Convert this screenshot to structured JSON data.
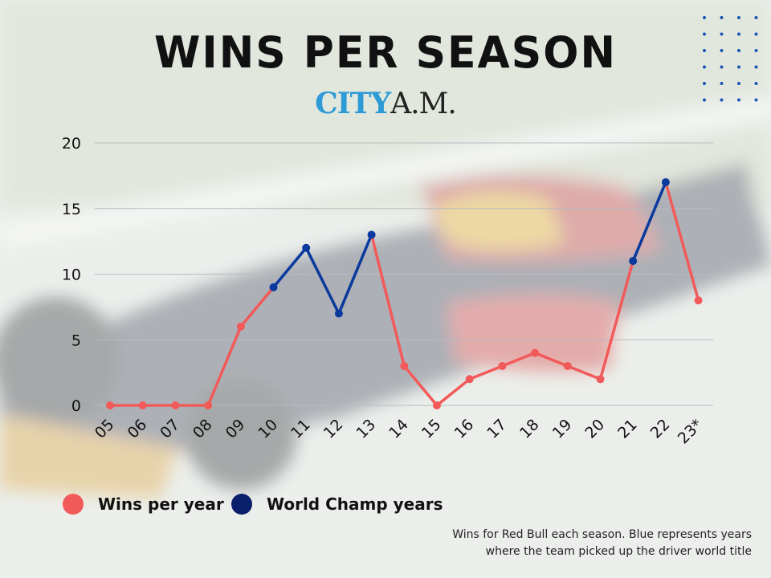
{
  "title": "WINS PER SEASON",
  "brand": {
    "city": "CITY",
    "am": "A.M."
  },
  "colors": {
    "wins": "#f25a5a",
    "champ": "#0a3a9e",
    "grid": "#b8bcc0",
    "dots": "#1a56b8"
  },
  "legend": [
    {
      "label": "Wins per year",
      "color": "#f25a5a",
      "icon": "red-dot-icon"
    },
    {
      "label": "World Champ years",
      "color": "#0a1f6b",
      "icon": "navy-dot-icon"
    }
  ],
  "caption": "Wins for Red Bull each season. Blue represents years where the team picked up the driver world title",
  "chart_data": {
    "type": "line",
    "title": "WINS PER SEASON",
    "xlabel": "",
    "ylabel": "",
    "categories": [
      "05",
      "06",
      "07",
      "08",
      "09",
      "10",
      "11",
      "12",
      "13",
      "14",
      "15",
      "16",
      "17",
      "18",
      "19",
      "20",
      "21",
      "22",
      "23*"
    ],
    "yticks": [
      "0",
      "5",
      "10",
      "15",
      "20"
    ],
    "ylim": [
      0,
      20
    ],
    "grid": true,
    "legend_position": "bottom-left",
    "series": [
      {
        "name": "Wins per year",
        "values": [
          0,
          0,
          0,
          0,
          6,
          9,
          12,
          7,
          13,
          3,
          0,
          2,
          3,
          4,
          3,
          2,
          11,
          17,
          8
        ]
      },
      {
        "name": "World Champ years",
        "champ_years": [
          "10",
          "11",
          "12",
          "13",
          "21",
          "22"
        ]
      }
    ]
  }
}
